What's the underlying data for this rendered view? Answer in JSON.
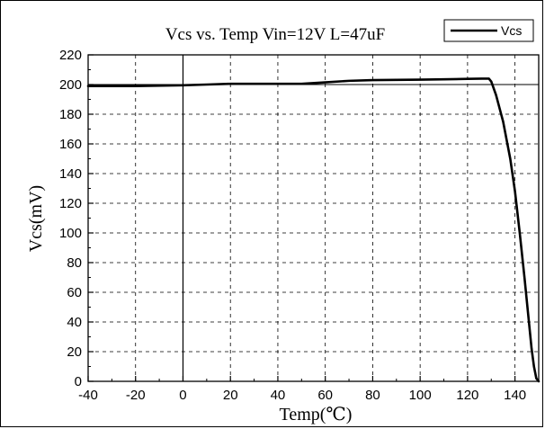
{
  "chart_data": {
    "type": "line",
    "title": "Vcs vs. Temp Vin=12V L=47uF",
    "xlabel": "Temp(℃)",
    "ylabel": "Vcs(mV)",
    "xlim": [
      -40,
      150
    ],
    "ylim": [
      0,
      220
    ],
    "xticks": [
      -40,
      -20,
      0,
      20,
      40,
      60,
      80,
      100,
      120,
      140
    ],
    "yticks": [
      0,
      20,
      40,
      60,
      80,
      100,
      120,
      140,
      160,
      180,
      200,
      220
    ],
    "grid": true,
    "grid_style": "dashed",
    "reference_lines": {
      "vertical_x": 0,
      "horizontal_y": 200
    },
    "legend": {
      "position": "top-right",
      "entries": [
        "Vcs"
      ]
    },
    "colors": {
      "series": "#000000",
      "grid": "#000000",
      "background": "#ffffff"
    },
    "series": [
      {
        "name": "Vcs",
        "x": [
          -40,
          -20,
          0,
          10,
          20,
          40,
          50,
          60,
          70,
          80,
          100,
          110,
          120,
          126,
          129,
          130,
          132,
          135,
          138,
          140,
          142,
          144,
          146,
          147,
          148,
          149,
          150
        ],
        "y": [
          199,
          199,
          199.5,
          200,
          200.5,
          200.5,
          200.5,
          201.5,
          202.5,
          203,
          203.3,
          203.5,
          203.8,
          204,
          204,
          202,
          193,
          175,
          150,
          128,
          100,
          70,
          38,
          22,
          10,
          2,
          0
        ]
      }
    ]
  }
}
